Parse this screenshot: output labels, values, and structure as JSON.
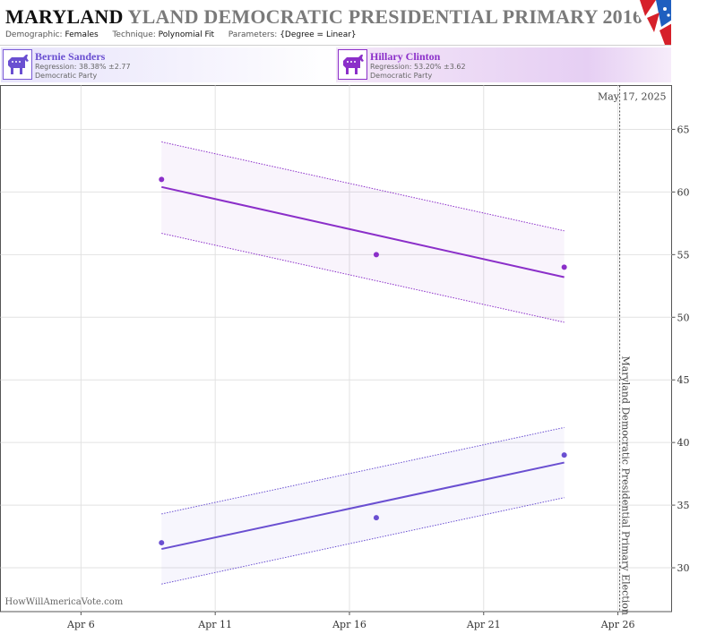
{
  "header": {
    "title_state": "MARYLAND",
    "title_rest": "YLAND DEMOCRATIC PRESIDENTIAL PRIMARY 2016",
    "demographic_label": "Demographic:",
    "demographic_value": "Females",
    "technique_label": "Technique:",
    "technique_value": "Polynomial Fit",
    "parameters_label": "Parameters:",
    "parameters_value": "{Degree = Linear}",
    "flag_icon": "us-flag-icon"
  },
  "candidates": [
    {
      "name": "Bernie Sanders",
      "regression": "Regression: 38.38% ±2.77",
      "party": "Democratic Party",
      "icon": "donkey-icon",
      "color": "#6a4fd1"
    },
    {
      "name": "Hillary Clinton",
      "regression": "Regression: 53.20% ±3.62",
      "party": "Democratic Party",
      "icon": "donkey-icon",
      "color": "#8b2fc9"
    }
  ],
  "chart_data": {
    "type": "scatter",
    "date_label": "May 17, 2025",
    "watermark": "HowWillAmericaVote.com",
    "election_label": "Maryland Democratic Presidential Primary Election",
    "election_date": "2016-04-26",
    "x_ticks": [
      {
        "date": "2016-04-06",
        "label": "Apr 6"
      },
      {
        "date": "2016-04-11",
        "label": "Apr 11"
      },
      {
        "date": "2016-04-16",
        "label": "Apr 16"
      },
      {
        "date": "2016-04-21",
        "label": "Apr 21"
      },
      {
        "date": "2016-04-26",
        "label": "Apr 26"
      }
    ],
    "xlim": [
      "2016-04-03",
      "2016-04-28"
    ],
    "y_ticks": [
      30,
      35,
      40,
      45,
      50,
      55,
      60,
      65
    ],
    "ylim": [
      26.5,
      68.5
    ],
    "grid": true,
    "series": [
      {
        "name": "Bernie Sanders",
        "color": "#6a4fd1",
        "points": [
          {
            "x": "2016-04-09",
            "y": 32
          },
          {
            "x": "2016-04-17",
            "y": 34
          },
          {
            "x": "2016-04-24",
            "y": 39
          }
        ],
        "fit": [
          {
            "x": "2016-04-09",
            "y": 31.5
          },
          {
            "x": "2016-04-24",
            "y": 38.4
          }
        ],
        "band_upper": [
          {
            "x": "2016-04-09",
            "y": 34.3
          },
          {
            "x": "2016-04-24",
            "y": 41.2
          }
        ],
        "band_lower": [
          {
            "x": "2016-04-09",
            "y": 28.7
          },
          {
            "x": "2016-04-24",
            "y": 35.6
          }
        ]
      },
      {
        "name": "Hillary Clinton",
        "color": "#8b2fc9",
        "points": [
          {
            "x": "2016-04-09",
            "y": 61
          },
          {
            "x": "2016-04-17",
            "y": 55
          },
          {
            "x": "2016-04-24",
            "y": 54
          }
        ],
        "fit": [
          {
            "x": "2016-04-09",
            "y": 60.4
          },
          {
            "x": "2016-04-24",
            "y": 53.2
          }
        ],
        "band_upper": [
          {
            "x": "2016-04-09",
            "y": 64.0
          },
          {
            "x": "2016-04-24",
            "y": 56.9
          }
        ],
        "band_lower": [
          {
            "x": "2016-04-09",
            "y": 56.7
          },
          {
            "x": "2016-04-24",
            "y": 49.6
          }
        ]
      }
    ]
  }
}
